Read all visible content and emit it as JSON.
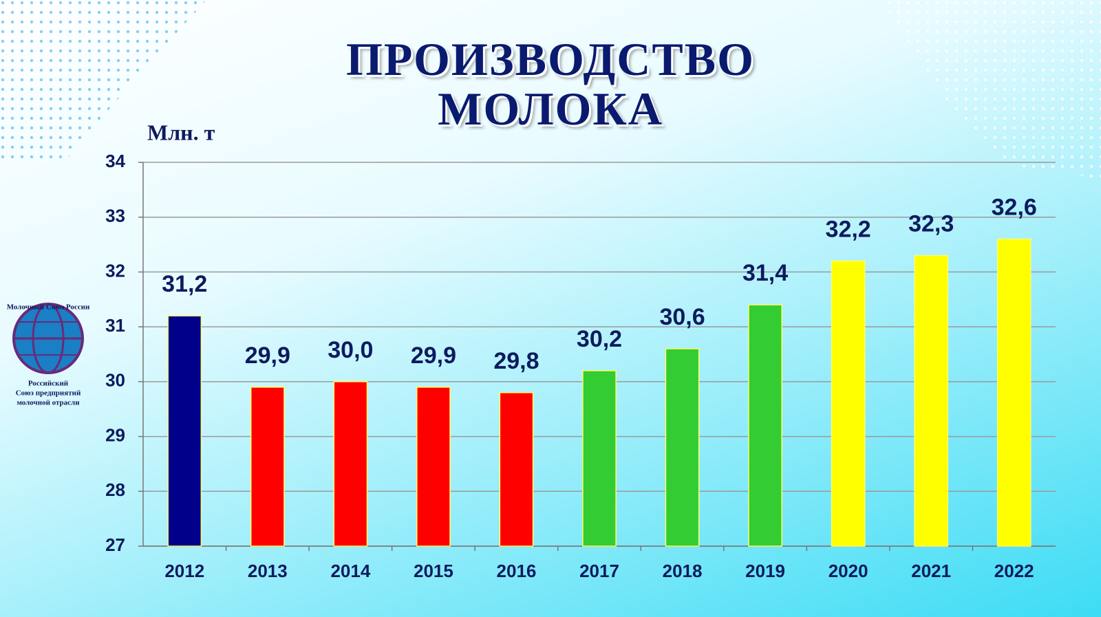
{
  "chart_data": {
    "type": "bar",
    "title": "ПРОИЗВОДСТВО МОЛОКА",
    "ylabel": "Млн. т",
    "categories": [
      "2012",
      "2013",
      "2014",
      "2015",
      "2016",
      "2017",
      "2018",
      "2019",
      "2020",
      "2021",
      "2022"
    ],
    "values": [
      31.2,
      29.9,
      30.0,
      29.9,
      29.8,
      30.2,
      30.6,
      31.4,
      32.2,
      32.3,
      32.6
    ],
    "value_labels": [
      "31,2",
      "29,9",
      "30,0",
      "29,9",
      "29,8",
      "30,2",
      "30,6",
      "31,4",
      "32,2",
      "32,3",
      "32,6"
    ],
    "colors": [
      "#00008b",
      "#ff0000",
      "#ff0000",
      "#ff0000",
      "#ff0000",
      "#33cc33",
      "#33cc33",
      "#33cc33",
      "#ffff00",
      "#ffff00",
      "#ffff00"
    ],
    "ylim": [
      27,
      34
    ],
    "yticks": [
      27,
      28,
      29,
      30,
      31,
      32,
      33,
      34
    ],
    "grid": true
  },
  "logo": {
    "top": "Молочный Союз России",
    "lines": [
      "Российский",
      "Союз предприятий",
      "молочной отрасли"
    ]
  }
}
